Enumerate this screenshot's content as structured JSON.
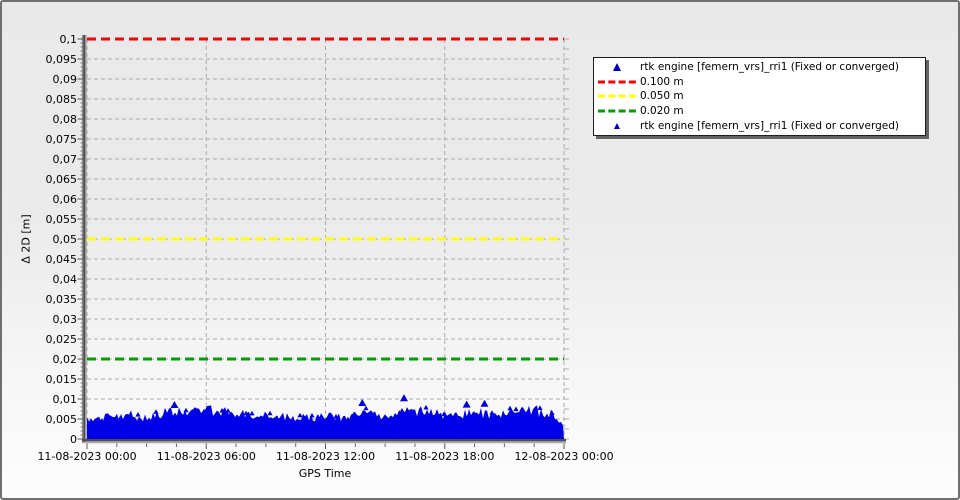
{
  "window": {
    "border_color": "#6f6f6f",
    "background_top": "#e9e9e9",
    "background_bottom": "#fdfdfd"
  },
  "chart_data": {
    "type": "scatter",
    "title": "",
    "xlabel": "GPS Time",
    "ylabel": "Δ 2D [m]",
    "grid": true,
    "ylim": [
      0,
      0.1
    ],
    "y_tick_step": 0.005,
    "decimal_style_y_axis": "comma",
    "y_tick_labels": [
      "0",
      "0,005",
      "0,01",
      "0,015",
      "0,02",
      "0,025",
      "0,03",
      "0,035",
      "0,04",
      "0,045",
      "0,05",
      "0,055",
      "0,06",
      "0,065",
      "0,07",
      "0,075",
      "0,08",
      "0,085",
      "0,09",
      "0,095",
      "0,1"
    ],
    "x_tick_labels": [
      "11-08-2023 00:00",
      "11-08-2023 06:00",
      "11-08-2023 12:00",
      "11-08-2023 18:00",
      "12-08-2023 00:00"
    ],
    "x_tick_hours": [
      0,
      6,
      12,
      18,
      24
    ],
    "x_minor_tick_step_hours": 1.5,
    "x_range_hours": [
      0,
      24
    ],
    "thresholds": [
      {
        "label": "0.100 m",
        "value": 0.1,
        "color": "#ff0000"
      },
      {
        "label": "0.050 m",
        "value": 0.05,
        "color": "#ffff00"
      },
      {
        "label": "0.020 m",
        "value": 0.02,
        "color": "#00a000"
      }
    ],
    "series": [
      {
        "name": "rtk engine [femern_vrs]_rri1 (Fixed or converged)",
        "marker": "triangle",
        "color": "#0000e8",
        "description": "dense scatter band of 2D position deltas, 0 to ~0.008 m with rare peaks near 0.011 m",
        "envelope_hours": [
          0,
          0.5,
          1,
          1.5,
          2,
          2.5,
          3,
          3.5,
          4,
          4.5,
          5,
          5.5,
          6,
          6.5,
          7,
          7.5,
          8,
          8.5,
          9,
          9.5,
          10,
          10.5,
          11,
          11.5,
          12,
          12.5,
          13,
          13.5,
          14,
          14.5,
          15,
          15.5,
          16,
          16.5,
          17,
          17.5,
          18,
          18.5,
          19,
          19.5,
          20,
          20.5,
          21,
          21.5,
          22,
          22.5,
          23,
          23.5,
          24
        ],
        "envelope_max_m": [
          0.006,
          0.0055,
          0.0065,
          0.006,
          0.007,
          0.0065,
          0.006,
          0.007,
          0.0075,
          0.008,
          0.0075,
          0.008,
          0.0078,
          0.0082,
          0.0075,
          0.007,
          0.0075,
          0.0068,
          0.0065,
          0.007,
          0.0062,
          0.0058,
          0.0065,
          0.006,
          0.0068,
          0.0062,
          0.0058,
          0.0072,
          0.008,
          0.007,
          0.0065,
          0.0075,
          0.0085,
          0.0075,
          0.008,
          0.0072,
          0.0068,
          0.0075,
          0.007,
          0.0078,
          0.0072,
          0.0068,
          0.0075,
          0.008,
          0.0078,
          0.0082,
          0.0075,
          0.0068,
          0.0035
        ],
        "outliers": [
          {
            "t_hours": 4.4,
            "value_m": 0.0095
          },
          {
            "t_hours": 13.85,
            "value_m": 0.01
          },
          {
            "t_hours": 15.95,
            "value_m": 0.0112
          },
          {
            "t_hours": 19.1,
            "value_m": 0.0096
          },
          {
            "t_hours": 20.0,
            "value_m": 0.0098
          }
        ]
      }
    ],
    "legend_position": "top-right-outside"
  },
  "legend": {
    "items": [
      {
        "marker": "triangle",
        "color": "#0000cc",
        "label": "rtk engine [femern_vrs]_rri1 (Fixed or converged)"
      },
      {
        "marker": "dashed-line",
        "color": "#ff0000",
        "label": "0.100 m"
      },
      {
        "marker": "dashed-line",
        "color": "#ffff00",
        "label": "0.050 m"
      },
      {
        "marker": "dashed-line",
        "color": "#00a000",
        "label": "0.020 m"
      },
      {
        "marker": "triangle-small",
        "color": "#0000cc",
        "label": "rtk engine [femern_vrs]_rri1 (Fixed or converged)"
      }
    ]
  },
  "style_colors": {
    "gridline": "#ababab",
    "axis_dark": "#4d4d4d",
    "axis_light": "#a8a8a8",
    "right_ticks": "#b0b0b0"
  }
}
